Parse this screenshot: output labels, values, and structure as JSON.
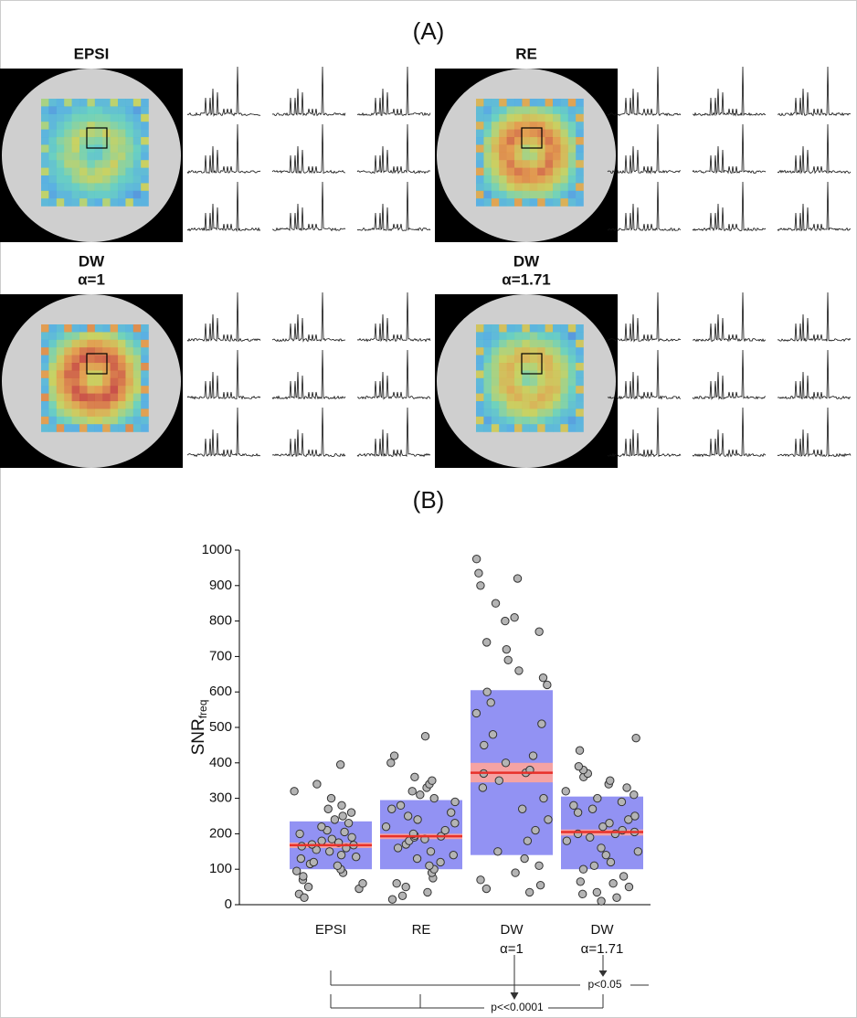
{
  "panel_a": {
    "label": "(A)",
    "maps": [
      {
        "title": [
          "EPSI"
        ]
      },
      {
        "title": [
          "RE"
        ]
      },
      {
        "title": [
          "DW",
          "α=1"
        ]
      },
      {
        "title": [
          "DW",
          "α=1.71"
        ]
      }
    ]
  },
  "chart_data": {
    "type": "box",
    "label": "(B)",
    "y_label": "SNR",
    "y_label_sub": "freq",
    "categories": [
      [
        "EPSI"
      ],
      [
        "RE"
      ],
      [
        "DW",
        "α=1"
      ],
      [
        "DW",
        "α=1.71"
      ]
    ],
    "ylim": [
      0,
      1000
    ],
    "yticks": [
      0,
      100,
      200,
      300,
      400,
      500,
      600,
      700,
      800,
      900,
      1000
    ],
    "q1": [
      100,
      100,
      140,
      100
    ],
    "median": [
      168,
      193,
      372,
      205
    ],
    "q3": [
      235,
      295,
      605,
      305
    ],
    "median_ci_low": [
      160,
      185,
      345,
      195
    ],
    "median_ci_high": [
      175,
      200,
      400,
      212
    ],
    "points": [
      [
        30,
        45,
        50,
        60,
        70,
        80,
        90,
        95,
        100,
        110,
        115,
        120,
        130,
        135,
        140,
        150,
        155,
        160,
        165,
        168,
        170,
        175,
        180,
        185,
        190,
        200,
        205,
        210,
        220,
        230,
        240,
        250,
        260,
        270,
        280,
        300,
        320,
        340,
        395,
        20
      ],
      [
        15,
        25,
        35,
        50,
        60,
        75,
        90,
        100,
        110,
        120,
        130,
        140,
        150,
        160,
        170,
        180,
        185,
        190,
        193,
        195,
        200,
        210,
        220,
        230,
        240,
        250,
        260,
        270,
        280,
        290,
        300,
        310,
        320,
        330,
        340,
        350,
        360,
        400,
        420,
        475
      ],
      [
        35,
        45,
        55,
        70,
        90,
        110,
        130,
        150,
        180,
        210,
        240,
        270,
        300,
        330,
        350,
        370,
        372,
        380,
        400,
        420,
        450,
        480,
        510,
        540,
        570,
        600,
        620,
        640,
        660,
        690,
        720,
        740,
        770,
        800,
        810,
        850,
        900,
        920,
        935,
        975
      ],
      [
        10,
        20,
        35,
        50,
        65,
        80,
        100,
        120,
        140,
        160,
        180,
        190,
        200,
        205,
        210,
        220,
        230,
        240,
        250,
        260,
        270,
        280,
        290,
        300,
        310,
        320,
        330,
        340,
        350,
        360,
        370,
        380,
        390,
        200,
        150,
        110,
        60,
        30,
        435,
        470
      ]
    ],
    "box_color": "#8c8cf2",
    "median_color": "#e8302a",
    "ci_color": "#f5a3a3",
    "point_color": "#b4b4b4",
    "annotations": [
      "p<0.05",
      "p<<0.0001"
    ]
  }
}
